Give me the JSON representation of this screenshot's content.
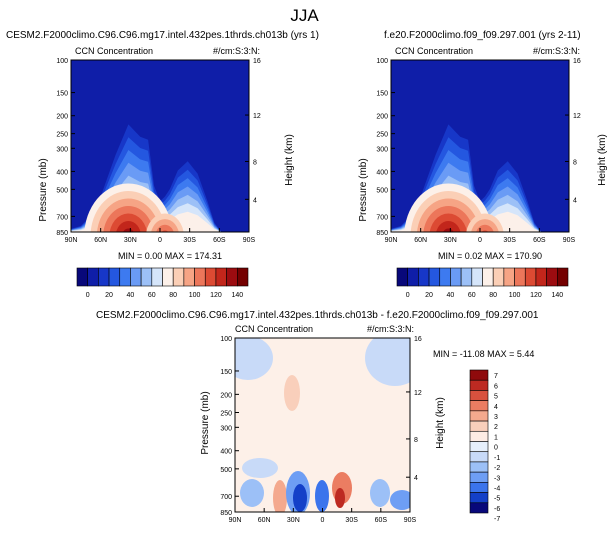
{
  "page": {
    "title": "JJA"
  },
  "colors": {
    "seq_scale": [
      "#08087a",
      "#0f1ea8",
      "#1737c8",
      "#2457e0",
      "#3d7af0",
      "#6a9bf5",
      "#9cc0f7",
      "#d5e5fa",
      "#fcf0e9",
      "#fbcfb6",
      "#f6a485",
      "#ec765a",
      "#dc4a33",
      "#c2261b",
      "#9c0c10",
      "#740000"
    ],
    "div_scale": [
      "#08087a",
      "#1440c8",
      "#3b74ec",
      "#6e9ef4",
      "#9cc0f7",
      "#c8daf8",
      "#e6effb",
      "#fdece4",
      "#f9cfbb",
      "#f4a98e",
      "#eb7d62",
      "#d8513e",
      "#bd2a22",
      "#8f0a0c"
    ]
  },
  "chart_data": [
    {
      "type": "heatmap",
      "id": "panel_a",
      "title": "CESM2.F2000climo.C96.C96.mg17.intel.432pes.1thrds.ch013b (yrs 1)",
      "left_title": "CCN Concentration",
      "right_title": "#/cm:S:3:N:",
      "ylabel": "Pressure (mb)",
      "ylabel_right": "Height (km)",
      "x_ticks": [
        "90N",
        "60N",
        "30N",
        "0",
        "30S",
        "60S",
        "90S"
      ],
      "y_ticks": [
        "100",
        "150",
        "200",
        "250",
        "300",
        "400",
        "500",
        "700",
        "850"
      ],
      "y_right_ticks": [
        "16",
        "12",
        "8",
        "4"
      ],
      "min_max_text": "MIN =  0.00  MAX = 174.31",
      "min": 0.0,
      "max": 174.31,
      "colorbar_labels": [
        "0",
        "20",
        "40",
        "60",
        "80",
        "100",
        "120",
        "140"
      ],
      "field_profile": [
        [
          0,
          2
        ],
        [
          -90,
          2
        ],
        [
          -80,
          4
        ],
        [
          -65,
          14
        ],
        [
          -45,
          50
        ],
        [
          -32,
          70
        ],
        [
          -20,
          62
        ],
        [
          -12,
          60
        ],
        [
          -6,
          30
        ],
        [
          0,
          20
        ],
        [
          5,
          23
        ],
        [
          10,
          28
        ],
        [
          18,
          40
        ],
        [
          28,
          46
        ],
        [
          38,
          38
        ],
        [
          48,
          20
        ],
        [
          55,
          6
        ],
        [
          62,
          0
        ],
        [
          90,
          0
        ]
      ],
      "hot_spots": [
        {
          "lat": -32,
          "p": 850,
          "value": 150
        },
        {
          "lat": 5,
          "p": 850,
          "value": 80
        }
      ]
    },
    {
      "type": "heatmap",
      "id": "panel_b",
      "title": "f.e20.F2000climo.f09_f09.297.001 (yrs 2-11)",
      "left_title": "CCN Concentration",
      "right_title": "#/cm:S:3:N:",
      "ylabel": "Pressure (mb)",
      "ylabel_right": "Height (km)",
      "x_ticks": [
        "90N",
        "60N",
        "30N",
        "0",
        "30S",
        "60S",
        "90S"
      ],
      "y_ticks": [
        "100",
        "150",
        "200",
        "250",
        "300",
        "400",
        "500",
        "700",
        "850"
      ],
      "y_right_ticks": [
        "16",
        "12",
        "8",
        "4"
      ],
      "min_max_text": "MIN =  0.02  MAX = 170.90",
      "min": 0.02,
      "max": 170.9,
      "colorbar_labels": [
        "0",
        "20",
        "40",
        "60",
        "80",
        "100",
        "120",
        "140"
      ],
      "field_profile": [
        [
          0,
          2
        ],
        [
          -90,
          2
        ],
        [
          -80,
          4
        ],
        [
          -65,
          14
        ],
        [
          -45,
          50
        ],
        [
          -32,
          70
        ],
        [
          -20,
          62
        ],
        [
          -12,
          60
        ],
        [
          -6,
          30
        ],
        [
          0,
          20
        ],
        [
          5,
          23
        ],
        [
          10,
          28
        ],
        [
          18,
          40
        ],
        [
          28,
          46
        ],
        [
          38,
          38
        ],
        [
          48,
          20
        ],
        [
          55,
          6
        ],
        [
          62,
          0
        ],
        [
          90,
          0
        ]
      ],
      "hot_spots": [
        {
          "lat": -32,
          "p": 850,
          "value": 148
        },
        {
          "lat": 5,
          "p": 850,
          "value": 78
        }
      ]
    },
    {
      "type": "heatmap",
      "id": "panel_diff",
      "title": "CESM2.F2000climo.C96.C96.mg17.intel.432pes.1thrds.ch013b - f.e20.F2000climo.f09_f09.297.001",
      "left_title": "CCN Concentration",
      "right_title": "#/cm:S:3:N:",
      "ylabel": "Pressure (mb)",
      "ylabel_right": "Height (km)",
      "x_ticks": [
        "90N",
        "60N",
        "30N",
        "0",
        "30S",
        "60S",
        "90S"
      ],
      "y_ticks": [
        "100",
        "150",
        "200",
        "250",
        "300",
        "400",
        "500",
        "700",
        "850"
      ],
      "y_right_ticks": [
        "16",
        "12",
        "8",
        "4"
      ],
      "min_max_text": "MIN = -11.08  MAX =   5.44",
      "min": -11.08,
      "max": 5.44,
      "colorbar_labels": [
        "7",
        "6",
        "5",
        "4",
        "3",
        "2",
        "1",
        "0",
        "-1",
        "-2",
        "-3",
        "-4",
        "-5",
        "-6",
        "-7"
      ]
    }
  ]
}
